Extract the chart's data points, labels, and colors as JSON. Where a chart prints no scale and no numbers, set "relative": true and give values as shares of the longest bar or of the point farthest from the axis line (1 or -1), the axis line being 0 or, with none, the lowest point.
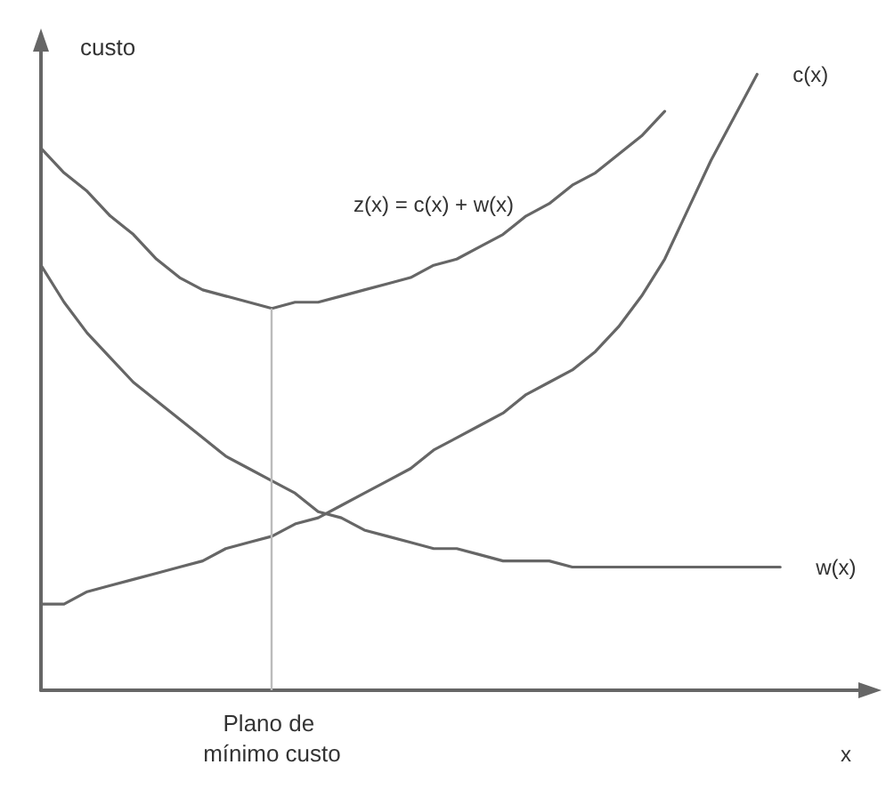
{
  "chart_data": {
    "type": "line",
    "relative": true,
    "xlabel": "x",
    "ylabel": "custo",
    "categories": [
      null,
      null,
      null,
      null,
      null,
      null,
      null,
      null,
      null,
      null,
      null,
      null,
      null,
      null,
      null,
      null,
      null,
      null,
      null,
      null,
      null,
      null,
      null,
      null,
      null,
      null,
      null,
      null,
      null,
      null,
      null,
      null,
      null,
      null,
      null,
      null,
      null
    ],
    "series": [
      {
        "name": "z(x) = c(x) + w(x)",
        "color": "#666666",
        "values": [
          0.88,
          0.84,
          0.81,
          0.77,
          0.74,
          0.7,
          0.67,
          0.65,
          0.64,
          0.63,
          0.62,
          0.63,
          0.63,
          0.64,
          0.65,
          0.66,
          0.67,
          0.69,
          0.7,
          0.72,
          0.74,
          0.77,
          0.79,
          0.82,
          0.84,
          0.87,
          0.9,
          0.94,
          null,
          null,
          null,
          null,
          null,
          null,
          null,
          null,
          null
        ]
      },
      {
        "name": "c(x)",
        "color": "#666666",
        "values": [
          0.14,
          0.14,
          0.16,
          0.17,
          0.18,
          0.19,
          0.2,
          0.21,
          0.23,
          0.24,
          0.25,
          0.27,
          0.28,
          0.3,
          0.32,
          0.34,
          0.36,
          0.39,
          0.41,
          0.43,
          0.45,
          0.48,
          0.5,
          0.52,
          0.55,
          0.59,
          0.64,
          0.7,
          0.78,
          0.86,
          0.93,
          1,
          null,
          null,
          null,
          null,
          null
        ]
      },
      {
        "name": "w(x)",
        "color": "#666666",
        "values": [
          0.69,
          0.63,
          0.58,
          0.54,
          0.5,
          0.47,
          0.44,
          0.41,
          0.38,
          0.36,
          0.34,
          0.32,
          0.29,
          0.28,
          0.26,
          0.25,
          0.24,
          0.23,
          0.23,
          0.22,
          0.21,
          0.21,
          0.21,
          0.2,
          0.2,
          0.2,
          0.2,
          0.2,
          0.2,
          0.2,
          0.2,
          0.2,
          0.2,
          null,
          null,
          null,
          null
        ]
      }
    ],
    "annotations": [
      "Plano de mínimo custo"
    ],
    "grid": false,
    "legend": false,
    "marker": "none",
    "line_style": "solid"
  }
}
